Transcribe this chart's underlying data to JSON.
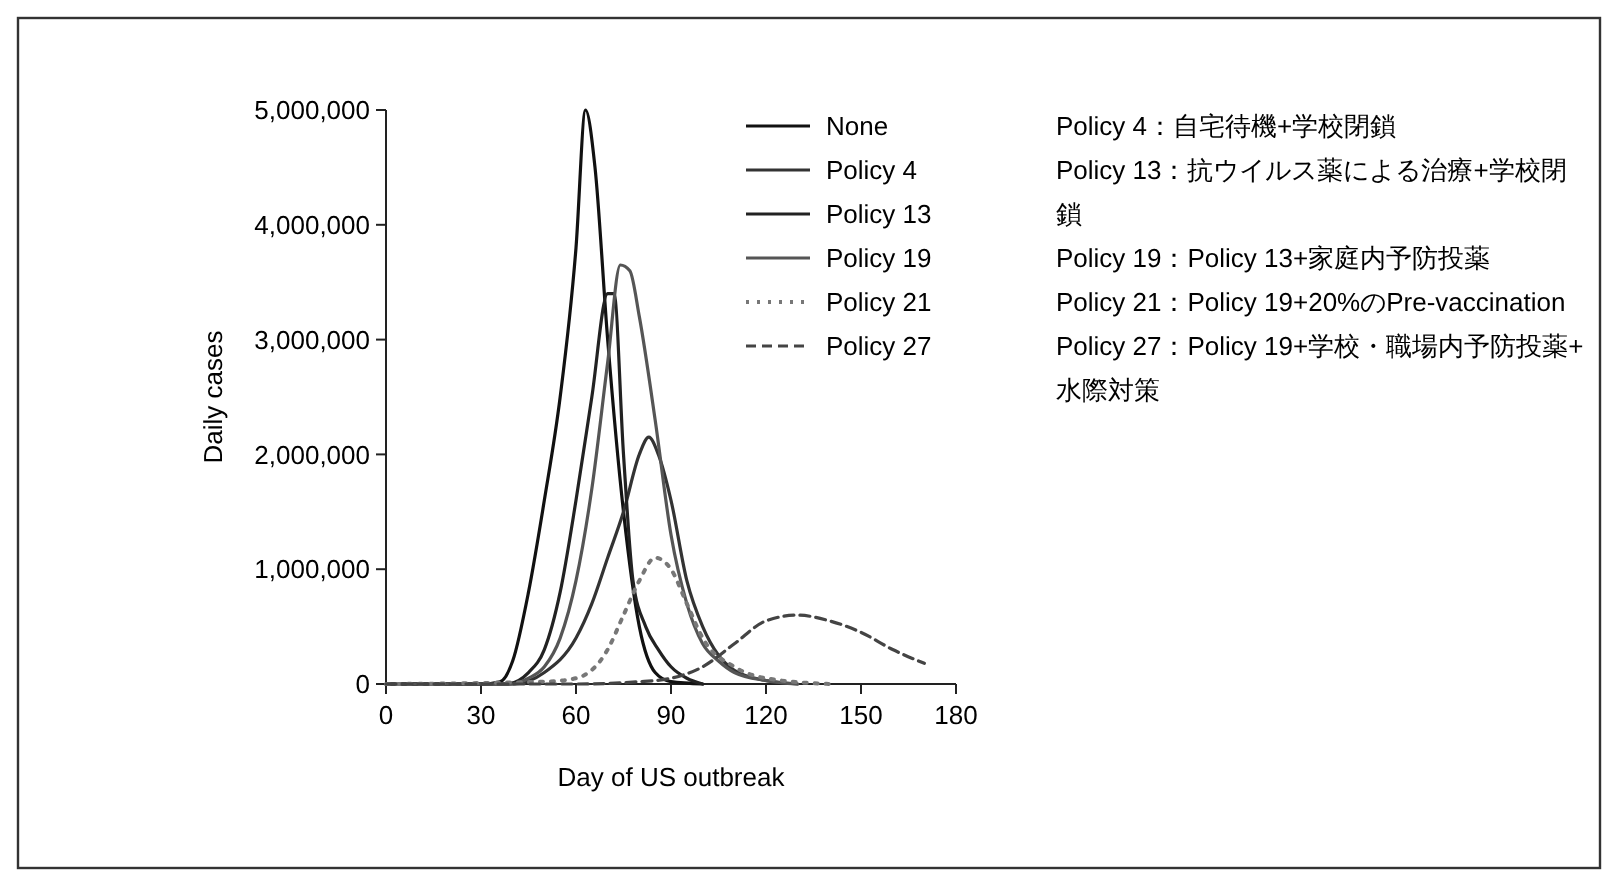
{
  "chart_data": {
    "type": "line",
    "xlabel": "Day of US outbreak",
    "ylabel": "Daily cases",
    "xlim": [
      0,
      180
    ],
    "xticks": [
      0,
      30,
      60,
      90,
      120,
      150,
      180
    ],
    "ylim": [
      0,
      5000000
    ],
    "yticks": [
      {
        "value": 0,
        "label": "0"
      },
      {
        "value": 1000000,
        "label": "1,000,000"
      },
      {
        "value": 2000000,
        "label": "2,000,000"
      },
      {
        "value": 3000000,
        "label": "3,000,000"
      },
      {
        "value": 4000000,
        "label": "4,000,000"
      },
      {
        "value": 5000000,
        "label": "5,000,000"
      }
    ],
    "legend": "right",
    "grid": false,
    "series": [
      {
        "name": "None",
        "color": "#111111",
        "line_style": "solid",
        "x": [
          0,
          30,
          36,
          40,
          45,
          50,
          55,
          60,
          63,
          66,
          70,
          75,
          80,
          85,
          90,
          100
        ],
        "values": [
          0,
          0,
          20000,
          200000,
          800000,
          1600000,
          2500000,
          3800000,
          5000000,
          4500000,
          3000000,
          1500000,
          500000,
          100000,
          20000,
          0
        ]
      },
      {
        "name": "Policy 4",
        "color": "#333333",
        "line_style": "solid",
        "x": [
          0,
          40,
          50,
          60,
          65,
          70,
          75,
          80,
          83,
          86,
          90,
          95,
          100,
          105,
          110,
          120,
          130
        ],
        "values": [
          0,
          0,
          100000,
          400000,
          700000,
          1100000,
          1500000,
          2000000,
          2150000,
          2000000,
          1600000,
          900000,
          500000,
          250000,
          120000,
          30000,
          0
        ]
      },
      {
        "name": "Policy 13",
        "color": "#222222",
        "line_style": "solid",
        "x": [
          0,
          38,
          45,
          50,
          55,
          60,
          65,
          70,
          72,
          75,
          78,
          82,
          86,
          90,
          95,
          100
        ],
        "values": [
          0,
          0,
          100000,
          300000,
          800000,
          1600000,
          2500000,
          3400000,
          3400000,
          2000000,
          900000,
          500000,
          300000,
          150000,
          50000,
          0
        ]
      },
      {
        "name": "Policy 19",
        "color": "#555555",
        "line_style": "solid",
        "x": [
          0,
          40,
          45,
          50,
          55,
          60,
          65,
          70,
          74,
          77,
          80,
          85,
          90,
          95,
          100,
          105,
          110,
          120,
          130
        ],
        "values": [
          0,
          0,
          50000,
          150000,
          400000,
          900000,
          1700000,
          2800000,
          3650000,
          3600000,
          3200000,
          2300000,
          1300000,
          700000,
          350000,
          200000,
          100000,
          30000,
          0
        ]
      },
      {
        "name": "Policy 21",
        "color": "#777777",
        "line_style": "dotted",
        "x": [
          0,
          50,
          60,
          70,
          75,
          80,
          85,
          90,
          95,
          100,
          110,
          120,
          140
        ],
        "values": [
          0,
          20000,
          50000,
          300000,
          600000,
          900000,
          1100000,
          1000000,
          700000,
          400000,
          150000,
          50000,
          0
        ]
      },
      {
        "name": "Policy 27",
        "color": "#444444",
        "line_style": "dashed",
        "x": [
          0,
          60,
          80,
          90,
          100,
          110,
          120,
          130,
          140,
          150,
          160,
          170
        ],
        "values": [
          0,
          0,
          20000,
          50000,
          150000,
          350000,
          550000,
          600000,
          550000,
          450000,
          300000,
          180000
        ]
      }
    ],
    "annotations": [
      "Policy 4：自宅待機+学校閉鎖",
      "Policy 13：抗ウイルス薬による治療+学校閉鎖",
      "Policy 19：Policy 13+家庭内予防投薬",
      "Policy 21：Policy 19+20%のPre-vaccination",
      "Policy 27：Policy 19+学校・職場内予防投薬+水際対策"
    ]
  }
}
